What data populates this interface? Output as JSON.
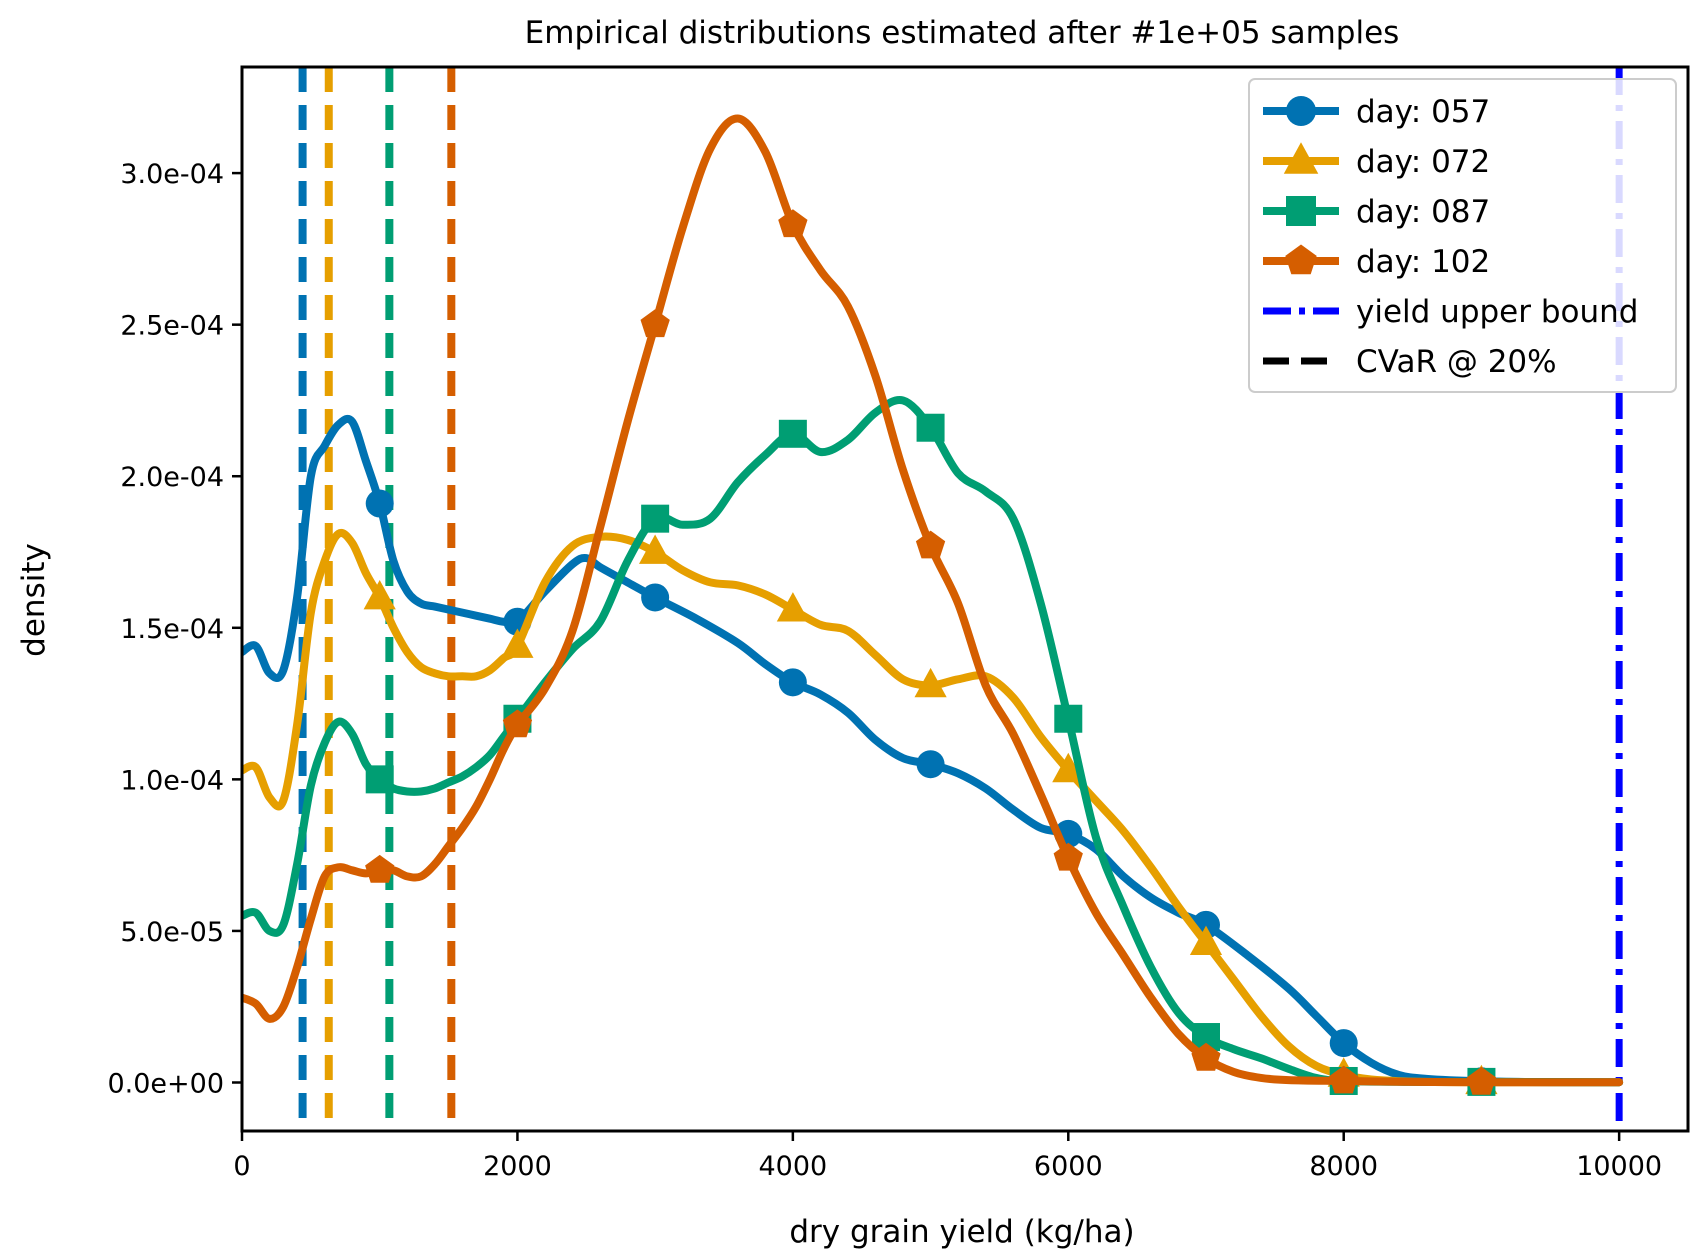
{
  "chart_data": {
    "type": "line",
    "title": "Empirical distributions estimated after #1e+05 samples",
    "xlabel": "dry grain yield (kg/ha)",
    "ylabel": "density",
    "xlim": [
      0,
      10500
    ],
    "ylim": [
      -1.6e-05,
      0.000335
    ],
    "x_ticks": [
      0,
      2000,
      4000,
      6000,
      8000,
      10000
    ],
    "x_tick_labels": [
      "0",
      "2000",
      "4000",
      "6000",
      "8000",
      "10000"
    ],
    "y_ticks": [
      0,
      5e-05,
      0.0001,
      0.00015,
      0.0002,
      0.00025,
      0.0003
    ],
    "y_tick_labels": [
      "0.0e+00",
      "5.0e-05",
      "1.0e-04",
      "1.5e-04",
      "2.0e-04",
      "2.5e-04",
      "3.0e-04"
    ],
    "legend_position": "top-right",
    "grid": false,
    "series": [
      {
        "name": "day: 057",
        "color": "#0072b2",
        "marker": "circle",
        "cvar": 440,
        "curve": [
          [
            0,
            0.000142
          ],
          [
            100,
            0.000144
          ],
          [
            200,
            0.000135
          ],
          [
            300,
            0.000136
          ],
          [
            400,
            0.00016
          ],
          [
            500,
            0.0002
          ],
          [
            600,
            0.00021
          ],
          [
            700,
            0.000217
          ],
          [
            800,
            0.000218
          ],
          [
            900,
            0.000205
          ],
          [
            1000,
            0.000191
          ],
          [
            1100,
            0.000172
          ],
          [
            1200,
            0.000162
          ],
          [
            1300,
            0.000158
          ],
          [
            1400,
            0.000157
          ],
          [
            1500,
            0.000156
          ],
          [
            1600,
            0.000155
          ],
          [
            1700,
            0.000154
          ],
          [
            1800,
            0.000153
          ],
          [
            1900,
            0.000152
          ],
          [
            2000,
            0.000152
          ],
          [
            2200,
            0.000162
          ],
          [
            2400,
            0.000171
          ],
          [
            2500,
            0.000173
          ],
          [
            2600,
            0.00017
          ],
          [
            2800,
            0.000165
          ],
          [
            3000,
            0.00016
          ],
          [
            3300,
            0.000153
          ],
          [
            3600,
            0.000145
          ],
          [
            3800,
            0.000138
          ],
          [
            4000,
            0.000132
          ],
          [
            4200,
            0.000128
          ],
          [
            4400,
            0.000122
          ],
          [
            4600,
            0.000113
          ],
          [
            4800,
            0.000107
          ],
          [
            5000,
            0.000105
          ],
          [
            5200,
            0.000102
          ],
          [
            5400,
            9.7e-05
          ],
          [
            5600,
            9e-05
          ],
          [
            5800,
            8.4e-05
          ],
          [
            6000,
            8.2e-05
          ],
          [
            6200,
            7.7e-05
          ],
          [
            6400,
            6.8e-05
          ],
          [
            6600,
            6.1e-05
          ],
          [
            6800,
            5.6e-05
          ],
          [
            7000,
            5.2e-05
          ],
          [
            7300,
            4.2e-05
          ],
          [
            7600,
            3.1e-05
          ],
          [
            7800,
            2.2e-05
          ],
          [
            8000,
            1.3e-05
          ],
          [
            8200,
            6.5e-06
          ],
          [
            8400,
            2.5e-06
          ],
          [
            8600,
            1.2e-06
          ],
          [
            9000,
            4e-07
          ],
          [
            9500,
            1e-07
          ],
          [
            10000,
            1e-07
          ]
        ],
        "marker_points": [
          [
            1000,
            0.000191
          ],
          [
            2000,
            0.000152
          ],
          [
            3000,
            0.00016
          ],
          [
            4000,
            0.000132
          ],
          [
            5000,
            0.000105
          ],
          [
            6000,
            8.2e-05
          ],
          [
            7000,
            5.2e-05
          ],
          [
            8000,
            1.3e-05
          ],
          [
            9000,
            4e-07
          ]
        ]
      },
      {
        "name": "day: 072",
        "color": "#e69f00",
        "marker": "triangle",
        "cvar": 630,
        "curve": [
          [
            0,
            0.000103
          ],
          [
            100,
            0.000104
          ],
          [
            200,
            9.4e-05
          ],
          [
            300,
            9.3e-05
          ],
          [
            400,
            0.000118
          ],
          [
            500,
            0.000155
          ],
          [
            600,
            0.000172
          ],
          [
            700,
            0.000181
          ],
          [
            800,
            0.000178
          ],
          [
            900,
            0.000168
          ],
          [
            1000,
            0.00016
          ],
          [
            1100,
            0.00015
          ],
          [
            1200,
            0.000142
          ],
          [
            1300,
            0.000137
          ],
          [
            1400,
            0.000135
          ],
          [
            1500,
            0.000134
          ],
          [
            1600,
            0.000134
          ],
          [
            1700,
            0.000134
          ],
          [
            1800,
            0.000136
          ],
          [
            1900,
            0.00014
          ],
          [
            2000,
            0.000144
          ],
          [
            2200,
            0.000165
          ],
          [
            2400,
            0.000177
          ],
          [
            2600,
            0.00018
          ],
          [
            2800,
            0.000179
          ],
          [
            3000,
            0.000175
          ],
          [
            3200,
            0.000169
          ],
          [
            3400,
            0.000165
          ],
          [
            3600,
            0.000164
          ],
          [
            3800,
            0.000161
          ],
          [
            4000,
            0.000156
          ],
          [
            4200,
            0.000151
          ],
          [
            4400,
            0.000149
          ],
          [
            4600,
            0.000141
          ],
          [
            4800,
            0.000133
          ],
          [
            5000,
            0.000131
          ],
          [
            5200,
            0.000133
          ],
          [
            5400,
            0.000134
          ],
          [
            5600,
            0.000127
          ],
          [
            5800,
            0.000114
          ],
          [
            6000,
            0.000103
          ],
          [
            6200,
            9.3e-05
          ],
          [
            6400,
            8.3e-05
          ],
          [
            6600,
            7.1e-05
          ],
          [
            6800,
            5.8e-05
          ],
          [
            7000,
            4.6e-05
          ],
          [
            7200,
            3.4e-05
          ],
          [
            7400,
            2.2e-05
          ],
          [
            7600,
            1.2e-05
          ],
          [
            7800,
            5.5e-06
          ],
          [
            8000,
            2.5e-06
          ],
          [
            8200,
            1e-06
          ],
          [
            8500,
            3e-07
          ],
          [
            9000,
            1e-07
          ],
          [
            10000,
            1e-07
          ]
        ],
        "marker_points": [
          [
            1000,
            0.00016
          ],
          [
            2000,
            0.000144
          ],
          [
            3000,
            0.000175
          ],
          [
            4000,
            0.000156
          ],
          [
            5000,
            0.000131
          ],
          [
            6000,
            0.000103
          ],
          [
            7000,
            4.6e-05
          ],
          [
            8000,
            2.5e-06
          ],
          [
            9000,
            1e-07
          ]
        ]
      },
      {
        "name": "day: 087",
        "color": "#009e73",
        "marker": "square",
        "cvar": 1070,
        "curve": [
          [
            0,
            5.5e-05
          ],
          [
            100,
            5.6e-05
          ],
          [
            200,
            5e-05
          ],
          [
            300,
            5.2e-05
          ],
          [
            400,
            7.2e-05
          ],
          [
            500,
            9.8e-05
          ],
          [
            600,
            0.000112
          ],
          [
            700,
            0.000119
          ],
          [
            800,
            0.000115
          ],
          [
            900,
            0.000105
          ],
          [
            1000,
            0.0001
          ],
          [
            1100,
            9.7e-05
          ],
          [
            1200,
            9.6e-05
          ],
          [
            1300,
            9.6e-05
          ],
          [
            1400,
            9.7e-05
          ],
          [
            1500,
            9.9e-05
          ],
          [
            1600,
            0.000101
          ],
          [
            1700,
            0.000104
          ],
          [
            1800,
            0.000108
          ],
          [
            1900,
            0.000114
          ],
          [
            2000,
            0.00012
          ],
          [
            2200,
            0.000132
          ],
          [
            2400,
            0.000143
          ],
          [
            2600,
            0.000152
          ],
          [
            2800,
            0.000172
          ],
          [
            3000,
            0.000186
          ],
          [
            3200,
            0.000184
          ],
          [
            3400,
            0.000186
          ],
          [
            3600,
            0.000198
          ],
          [
            3800,
            0.000207
          ],
          [
            4000,
            0.000214
          ],
          [
            4200,
            0.000208
          ],
          [
            4400,
            0.000212
          ],
          [
            4600,
            0.000221
          ],
          [
            4800,
            0.000225
          ],
          [
            5000,
            0.000216
          ],
          [
            5200,
            0.000201
          ],
          [
            5400,
            0.000195
          ],
          [
            5600,
            0.000186
          ],
          [
            5800,
            0.000158
          ],
          [
            6000,
            0.00012
          ],
          [
            6200,
            8.1e-05
          ],
          [
            6400,
            5.8e-05
          ],
          [
            6600,
            3.8e-05
          ],
          [
            6800,
            2.3e-05
          ],
          [
            7000,
            1.5e-05
          ],
          [
            7200,
            1.1e-05
          ],
          [
            7400,
            8e-06
          ],
          [
            7600,
            4.5e-06
          ],
          [
            7800,
            1.5e-06
          ],
          [
            8000,
            5e-07
          ],
          [
            8500,
            2e-07
          ],
          [
            9000,
            2e-07
          ],
          [
            10000,
            1e-07
          ]
        ],
        "marker_points": [
          [
            1000,
            0.0001
          ],
          [
            2000,
            0.00012
          ],
          [
            3000,
            0.000186
          ],
          [
            4000,
            0.000214
          ],
          [
            5000,
            0.000216
          ],
          [
            6000,
            0.00012
          ],
          [
            7000,
            1.5e-05
          ],
          [
            8000,
            5e-07
          ],
          [
            9000,
            2e-07
          ]
        ]
      },
      {
        "name": "day: 102",
        "color": "#d55e00",
        "marker": "pentagon",
        "cvar": 1520,
        "curve": [
          [
            0,
            2.8e-05
          ],
          [
            100,
            2.6e-05
          ],
          [
            200,
            2.1e-05
          ],
          [
            300,
            2.5e-05
          ],
          [
            400,
            3.8e-05
          ],
          [
            500,
            5.4e-05
          ],
          [
            600,
            6.8e-05
          ],
          [
            700,
            7.1e-05
          ],
          [
            800,
            7e-05
          ],
          [
            900,
            6.9e-05
          ],
          [
            1000,
            7e-05
          ],
          [
            1100,
            7e-05
          ],
          [
            1200,
            6.8e-05
          ],
          [
            1300,
            6.8e-05
          ],
          [
            1400,
            7.2e-05
          ],
          [
            1500,
            7.8e-05
          ],
          [
            1600,
            8.4e-05
          ],
          [
            1700,
            9.1e-05
          ],
          [
            1800,
            0.0001
          ],
          [
            1900,
            0.00011
          ],
          [
            2000,
            0.000118
          ],
          [
            2200,
            0.00013
          ],
          [
            2400,
            0.000149
          ],
          [
            2600,
            0.000183
          ],
          [
            2800,
            0.000218
          ],
          [
            3000,
            0.00025
          ],
          [
            3200,
            0.000282
          ],
          [
            3400,
            0.000308
          ],
          [
            3600,
            0.000318
          ],
          [
            3800,
            0.000307
          ],
          [
            4000,
            0.000283
          ],
          [
            4200,
            0.000268
          ],
          [
            4400,
            0.000256
          ],
          [
            4600,
            0.000233
          ],
          [
            4800,
            0.000202
          ],
          [
            5000,
            0.000177
          ],
          [
            5200,
            0.000158
          ],
          [
            5400,
            0.000131
          ],
          [
            5600,
            0.000115
          ],
          [
            5800,
            9.5e-05
          ],
          [
            6000,
            7.4e-05
          ],
          [
            6200,
            5.6e-05
          ],
          [
            6400,
            4.2e-05
          ],
          [
            6600,
            2.8e-05
          ],
          [
            6800,
            1.6e-05
          ],
          [
            7000,
            8e-06
          ],
          [
            7200,
            3.5e-06
          ],
          [
            7400,
            1.5e-06
          ],
          [
            7600,
            8e-07
          ],
          [
            8000,
            5e-07
          ],
          [
            8500,
            2e-07
          ],
          [
            9000,
            1e-07
          ],
          [
            10000,
            1e-07
          ]
        ],
        "marker_points": [
          [
            1000,
            7e-05
          ],
          [
            2000,
            0.000118
          ],
          [
            3000,
            0.00025
          ],
          [
            4000,
            0.000283
          ],
          [
            5000,
            0.000177
          ],
          [
            6000,
            7.4e-05
          ],
          [
            7000,
            8e-06
          ],
          [
            8000,
            5e-07
          ],
          [
            9000,
            1e-07
          ]
        ]
      }
    ],
    "upper_bound": {
      "name": "yield upper bound",
      "x": 10000,
      "color": "#0000ff"
    },
    "cvar_legend": {
      "name": "CVaR @ 20%",
      "color": "#000000"
    }
  }
}
